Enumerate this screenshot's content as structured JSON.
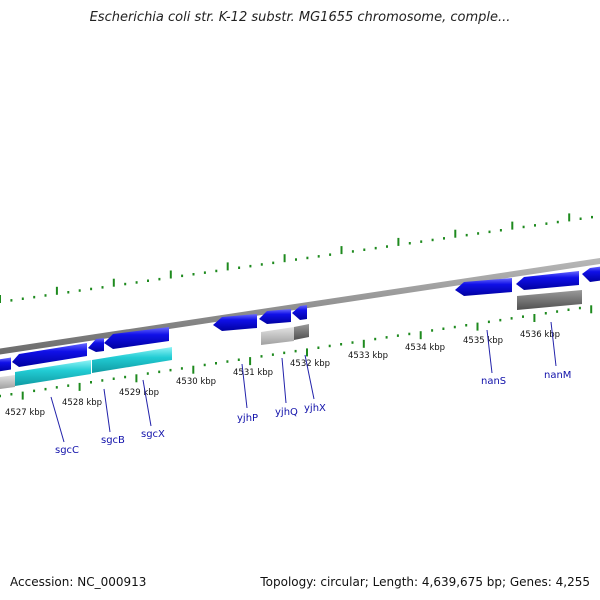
{
  "title": "Escherichia coli str. K-12 substr. MG1655 chromosome, comple...",
  "footer": {
    "accession": "Accession: NC_000913",
    "summary": "Topology: circular; Length: 4,639,675 bp; Genes: 4,255"
  },
  "scale_labels": [
    "4527 kbp",
    "4528 kbp",
    "4529 kbp",
    "4530 kbp",
    "4531 kbp",
    "4532 kbp",
    "4533 kbp",
    "4534 kbp",
    "4535 kbp",
    "4536 kbp"
  ],
  "gene_labels": [
    "sgcC",
    "sgcB",
    "sgcX",
    "yjhP",
    "yjhQ",
    "yjhX",
    "nanS",
    "nanM"
  ],
  "colors": {
    "cds": "#1010e0",
    "cds_dark": "#0000a0",
    "rna_cyan": "#20c8d0",
    "grey_light": "#bdbdbd",
    "grey_dark": "#707070",
    "backbone": "#8c8c8c",
    "ticks": "#1e8a1e"
  }
}
